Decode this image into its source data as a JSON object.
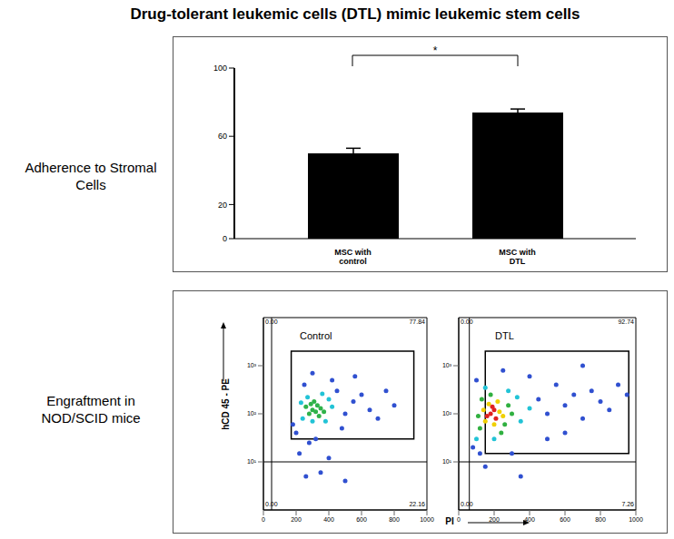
{
  "title": "Drug-tolerant leukemic cells (DTL) mimic leukemic stem cells",
  "row_labels": [
    "Adherence to Stromal Cells",
    "Engraftment in NOD/SCID mice"
  ],
  "chart_data": [
    {
      "type": "bar",
      "categories": [
        "MSC with control",
        "MSC with DTL"
      ],
      "values": [
        50,
        74
      ],
      "errors": [
        3,
        2
      ],
      "color": "#000000",
      "ylim": [
        0,
        100
      ],
      "yticks": [
        0,
        20,
        60,
        100
      ],
      "annotation": "*"
    },
    {
      "type": "scatter",
      "title": "Control",
      "ylabel": "hCD 45 - PE",
      "log": "y",
      "xlim": [
        0,
        1000
      ],
      "ylim": [
        1,
        10000
      ],
      "xticks": [
        0,
        200,
        400,
        600,
        800,
        1000
      ],
      "yticks": [
        {
          "value": 10,
          "label": "10¹"
        },
        {
          "value": 100,
          "label": "10²"
        },
        {
          "value": 1000,
          "label": "10³"
        }
      ],
      "quadrant_x": 50,
      "quadrant_y": 10,
      "gate": {
        "x": [
          170,
          920
        ],
        "y": [
          30,
          2000
        ]
      },
      "quadrant_labels": {
        "top_left": "0.00",
        "top_right": "77.84",
        "bottom_left": "0.00",
        "bottom_right": "22.16"
      },
      "series": [
        {
          "color": "#3050d0",
          "x": [
            200,
            450,
            500,
            550,
            250,
            420,
            600,
            650,
            700,
            180,
            320,
            480,
            280,
            220,
            400,
            350,
            260,
            500,
            750,
            800,
            560,
            300
          ],
          "values": [
            40,
            300,
            100,
            180,
            400,
            500,
            250,
            120,
            80,
            60,
            30,
            50,
            25,
            15,
            12,
            6,
            5,
            4,
            300,
            150,
            600,
            700
          ]
        },
        {
          "color": "#22c3d6",
          "x": [
            240,
            400,
            380,
            270,
            420,
            230,
            360,
            300
          ],
          "values": [
            80,
            200,
            70,
            220,
            140,
            170,
            260,
            70
          ]
        },
        {
          "color": "#2fb24a",
          "x": [
            300,
            330,
            280,
            350,
            310,
            370,
            260,
            340,
            290,
            320
          ],
          "values": [
            120,
            150,
            100,
            130,
            180,
            110,
            140,
            90,
            160,
            110
          ]
        }
      ]
    },
    {
      "type": "scatter",
      "title": "DTL",
      "xlabel": "PI",
      "log": "y",
      "xlim": [
        0,
        1000
      ],
      "ylim": [
        1,
        10000
      ],
      "xticks": [
        0,
        200,
        400,
        600,
        800,
        1000
      ],
      "yticks": [
        {
          "value": 10,
          "label": "10¹"
        },
        {
          "value": 100,
          "label": "10²"
        },
        {
          "value": 1000,
          "label": "10³"
        }
      ],
      "quadrant_x": 60,
      "quadrant_y": 10,
      "gate": {
        "x": [
          150,
          960
        ],
        "y": [
          15,
          2000
        ]
      },
      "quadrant_labels": {
        "top_left": "0.00",
        "top_right": "92.74",
        "bottom_left": "0.00",
        "bottom_right": "7.26"
      },
      "series": [
        {
          "color": "#3050d0",
          "x": [
            80,
            450,
            500,
            550,
            600,
            650,
            700,
            750,
            800,
            850,
            900,
            950,
            400,
            250,
            120,
            300,
            500,
            150,
            350,
            600,
            700,
            100
          ],
          "values": [
            20,
            200,
            100,
            400,
            150,
            250,
            80,
            300,
            180,
            120,
            400,
            250,
            600,
            800,
            15,
            15,
            30,
            8,
            5,
            40,
            1000,
            500
          ]
        },
        {
          "color": "#22c3d6",
          "x": [
            100,
            330,
            350,
            150,
            400,
            200,
            280
          ],
          "values": [
            30,
            220,
            70,
            350,
            130,
            30,
            300
          ]
        },
        {
          "color": "#30b040",
          "x": [
            120,
            280,
            260,
            130,
            300,
            180,
            240,
            110
          ],
          "values": [
            50,
            150,
            60,
            200,
            100,
            250,
            40,
            90
          ]
        },
        {
          "color": "#f0d000",
          "x": [
            150,
            230,
            170,
            250,
            140,
            220,
            200
          ],
          "values": [
            70,
            110,
            160,
            90,
            120,
            180,
            60
          ]
        },
        {
          "color": "#e02020",
          "x": [
            180,
            200,
            160,
            210,
            190
          ],
          "values": [
            100,
            120,
            90,
            80,
            140
          ]
        }
      ]
    }
  ]
}
